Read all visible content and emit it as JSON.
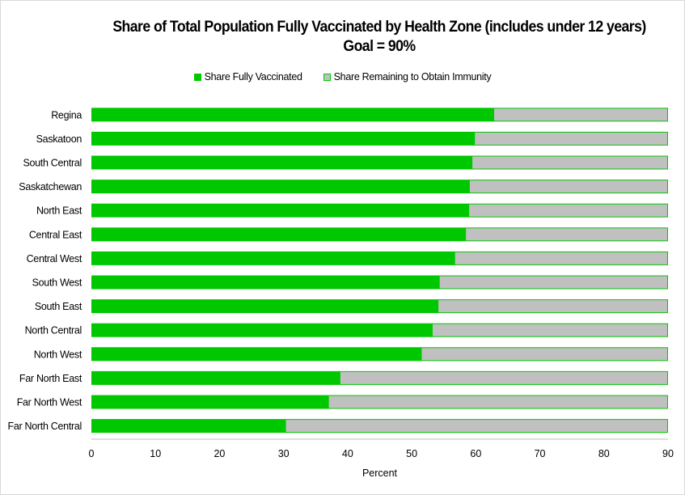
{
  "chart_data": {
    "type": "bar",
    "orientation": "horizontal",
    "stacked": true,
    "title": "Share of Total Population Fully Vaccinated by Health Zone (includes under 12 years)",
    "subtitle": "Goal = 90%",
    "xlabel": "Percent",
    "ylabel": "",
    "xlim": [
      0,
      90
    ],
    "xticks": [
      "0",
      "10",
      "20",
      "30",
      "40",
      "50",
      "60",
      "70",
      "80",
      "90"
    ],
    "grid": false,
    "legend_position": "top",
    "categories": [
      "Regina",
      "Saskatoon",
      "South Central",
      "Saskatchewan",
      "North East",
      "Central East",
      "Central West",
      "South West",
      "South East",
      "North Central",
      "North West",
      "Far North East",
      "Far North West",
      "Far North Central"
    ],
    "series": [
      {
        "name": "Share Fully Vaccinated",
        "color": "#00c800",
        "values": [
          62.8,
          59.8,
          59.4,
          59.0,
          58.9,
          58.4,
          56.7,
          54.3,
          54.1,
          53.2,
          51.5,
          38.8,
          37.0,
          30.3
        ]
      },
      {
        "name": "Share Remaining to Obtain Immunity",
        "color": "#c0c0c0",
        "values": [
          27.2,
          30.2,
          30.6,
          31.0,
          31.1,
          31.6,
          33.3,
          35.7,
          35.9,
          36.8,
          38.5,
          51.2,
          53.0,
          59.7
        ]
      }
    ]
  }
}
